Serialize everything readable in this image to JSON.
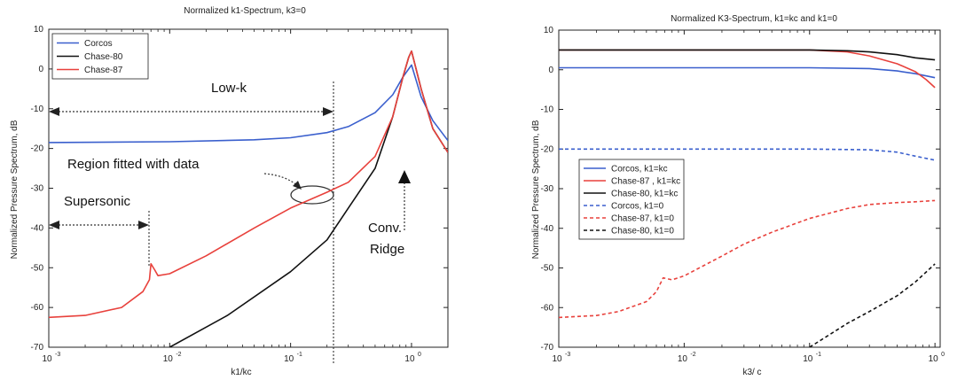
{
  "chart_data": [
    {
      "type": "line",
      "title": "Normalized k1-Spectrum, k3=0",
      "xlabel": "k1/kc",
      "ylabel": "Normalized Pressure Spectrum, dB",
      "xscale": "log",
      "xlim": [
        0.001,
        2
      ],
      "ylim": [
        -70,
        10
      ],
      "yticks": [
        10,
        0,
        -10,
        -20,
        -30,
        -40,
        -50,
        -60,
        -70
      ],
      "xticks": [
        {
          "value": 0.001,
          "base": "10",
          "exp": "-3"
        },
        {
          "value": 0.01,
          "base": "10",
          "exp": "-2"
        },
        {
          "value": 0.1,
          "base": "10",
          "exp": "-1"
        },
        {
          "value": 1,
          "base": "10",
          "exp": "0"
        }
      ],
      "grid": false,
      "legend_position": "top-left",
      "series": [
        {
          "name": "Corcos",
          "color": "#3a5fcd",
          "style": "solid",
          "x": [
            0.001,
            0.01,
            0.05,
            0.1,
            0.2,
            0.3,
            0.5,
            0.7,
            0.85,
            1.0,
            1.2,
            1.5,
            2.0
          ],
          "y": [
            -18.5,
            -18.3,
            -17.8,
            -17.3,
            -16.0,
            -14.5,
            -11.0,
            -6.5,
            -2.0,
            1.0,
            -7.0,
            -13.0,
            -18.0
          ]
        },
        {
          "name": "Chase-80",
          "color": "#111111",
          "style": "solid",
          "x": [
            0.01,
            0.03,
            0.1,
            0.2,
            0.3,
            0.5,
            0.7,
            0.85,
            0.95,
            1.0,
            1.2,
            1.5,
            2.0
          ],
          "y": [
            -70.0,
            -62.0,
            -51.0,
            -43.0,
            -35.0,
            -25.0,
            -12.0,
            -2.0,
            3.0,
            4.5,
            -5.0,
            -15.0,
            -21.0
          ]
        },
        {
          "name": "Chase-87",
          "color": "#e8413c",
          "style": "solid",
          "x": [
            0.001,
            0.002,
            0.004,
            0.006,
            0.0068,
            0.007,
            0.0075,
            0.008,
            0.01,
            0.02,
            0.05,
            0.1,
            0.2,
            0.3,
            0.5,
            0.7,
            0.85,
            0.95,
            1.0,
            1.2,
            1.5,
            2.0
          ],
          "y": [
            -62.5,
            -62.0,
            -60.0,
            -56.0,
            -53.0,
            -49.0,
            -50.5,
            -52.0,
            -51.5,
            -47.0,
            -40.0,
            -35.0,
            -31.0,
            -28.5,
            -22.0,
            -12.0,
            -2.0,
            3.0,
            4.5,
            -5.0,
            -15.0,
            -21.0
          ]
        }
      ],
      "annotations": [
        {
          "text": "Low-k",
          "x": 0.02,
          "y": -5
        },
        {
          "text": "Region fitted with data",
          "x": 0.01,
          "y": -25
        },
        {
          "text": "Supersonic",
          "x": 0.0015,
          "y": -35
        },
        {
          "text": "Conv.",
          "x": 0.5,
          "y": -43
        },
        {
          "text": "Ridge",
          "x": 0.5,
          "y": -50
        }
      ]
    },
    {
      "type": "line",
      "title": "Normalized K3-Spectrum, k1=kc and k1=0",
      "xlabel": "k3/ c",
      "ylabel": "Normalized Pressure Spectrum, dB",
      "xscale": "log",
      "xlim": [
        0.001,
        1.1
      ],
      "ylim": [
        -70,
        10
      ],
      "yticks": [
        10,
        0,
        -10,
        -20,
        -30,
        -40,
        -50,
        -60,
        -70
      ],
      "xticks": [
        {
          "value": 0.001,
          "base": "10",
          "exp": "-3"
        },
        {
          "value": 0.01,
          "base": "10",
          "exp": "-2"
        },
        {
          "value": 0.1,
          "base": "10",
          "exp": "-1"
        },
        {
          "value": 1,
          "base": "10",
          "exp": "0"
        }
      ],
      "grid": false,
      "legend_position": "middle-left",
      "series": [
        {
          "name": "Corcos, k1=kc",
          "color": "#3a5fcd",
          "style": "solid",
          "x": [
            0.001,
            0.1,
            0.3,
            0.5,
            0.7,
            1.0
          ],
          "y": [
            0.5,
            0.5,
            0.3,
            -0.3,
            -1.0,
            -2.0
          ]
        },
        {
          "name": "Chase-87 , k1=kc",
          "color": "#e8413c",
          "style": "solid",
          "x": [
            0.001,
            0.1,
            0.2,
            0.3,
            0.5,
            0.7,
            0.85,
            1.0
          ],
          "y": [
            5.0,
            5.0,
            4.5,
            3.5,
            1.5,
            -0.5,
            -2.5,
            -4.5
          ]
        },
        {
          "name": "Chase-80, k1=kc",
          "color": "#111111",
          "style": "solid",
          "x": [
            0.001,
            0.1,
            0.2,
            0.3,
            0.5,
            0.7,
            1.0
          ],
          "y": [
            5.0,
            5.0,
            4.8,
            4.5,
            3.8,
            3.0,
            2.5
          ]
        },
        {
          "name": "Corcos, k1=0",
          "color": "#3a5fcd",
          "style": "dashed",
          "x": [
            0.001,
            0.1,
            0.3,
            0.5,
            0.7,
            1.0
          ],
          "y": [
            -20.0,
            -20.0,
            -20.2,
            -20.8,
            -21.8,
            -22.8
          ]
        },
        {
          "name": "Chase-87, k1=0",
          "color": "#e8413c",
          "style": "dashed",
          "x": [
            0.001,
            0.002,
            0.003,
            0.005,
            0.006,
            0.0068,
            0.008,
            0.01,
            0.02,
            0.03,
            0.05,
            0.1,
            0.2,
            0.3,
            0.5,
            0.7,
            1.0
          ],
          "y": [
            -62.5,
            -62.0,
            -61.0,
            -58.5,
            -56.0,
            -52.5,
            -53.0,
            -52.0,
            -47.0,
            -44.0,
            -41.0,
            -37.5,
            -35.0,
            -34.0,
            -33.5,
            -33.3,
            -33.0
          ]
        },
        {
          "name": "Chase-80, k1=0",
          "color": "#111111",
          "style": "dashed",
          "x": [
            0.1,
            0.2,
            0.3,
            0.5,
            0.7,
            1.0
          ],
          "y": [
            -70.0,
            -64.0,
            -61.0,
            -57.0,
            -53.5,
            -49.0
          ]
        }
      ]
    }
  ]
}
